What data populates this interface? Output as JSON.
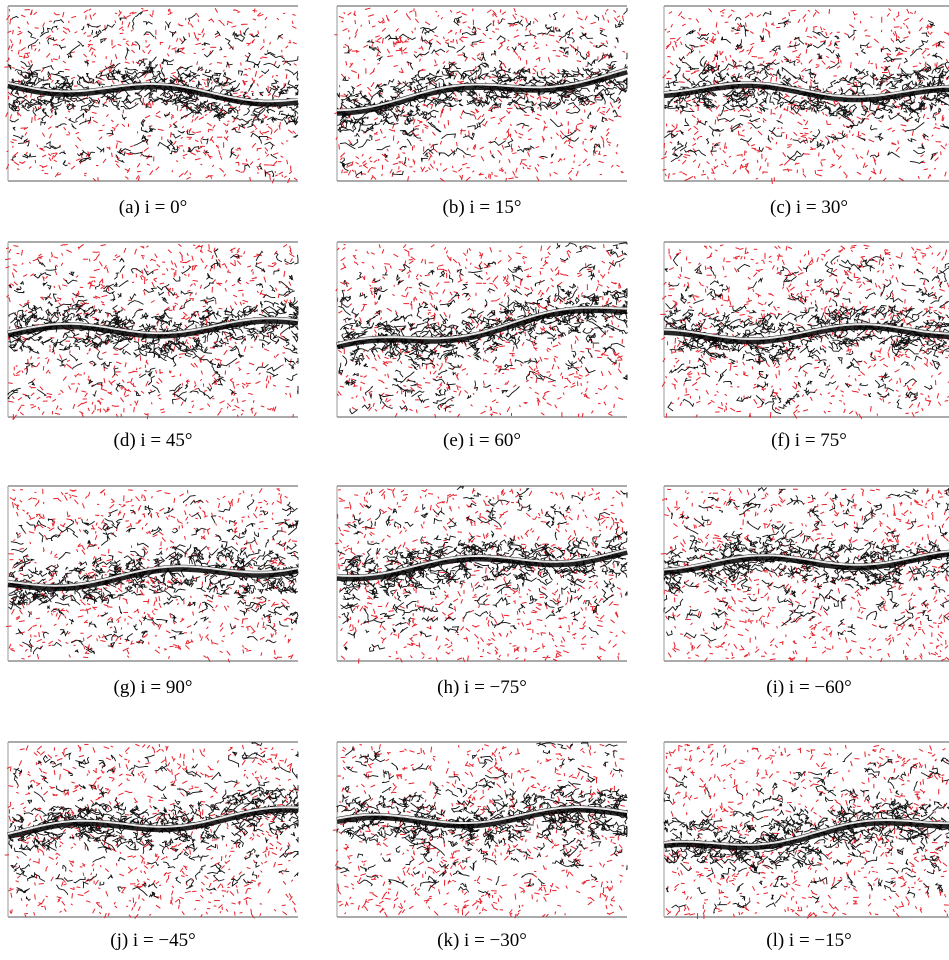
{
  "panels": [
    {
      "label": "(a) i = 0°"
    },
    {
      "label": "(b) i = 15°"
    },
    {
      "label": "(c) i = 30°"
    },
    {
      "label": "(d) i = 45°"
    },
    {
      "label": "(e) i = 60°"
    },
    {
      "label": "(f) i = 75°"
    },
    {
      "label": "(g) i = 90°"
    },
    {
      "label": "(h) i = −75°"
    },
    {
      "label": "(i) i = −60°"
    },
    {
      "label": "(j) i = −45°"
    },
    {
      "label": "(k) i = −30°"
    },
    {
      "label": "(l) i = −15°"
    }
  ]
}
